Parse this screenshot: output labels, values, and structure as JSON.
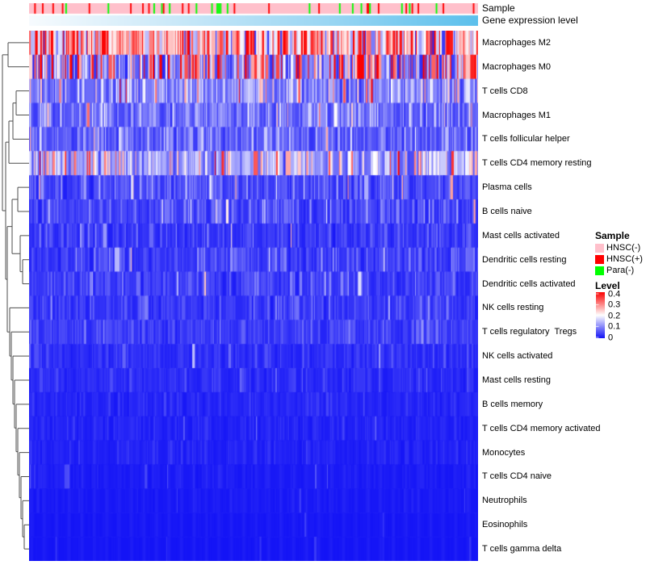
{
  "annotations": {
    "sample_label": "Sample",
    "gene_expression_label": "Gene expression level"
  },
  "legend": {
    "sample_title": "Sample",
    "sample_items": [
      {
        "label": "HNSC(-)",
        "color": "#FFC0CB"
      },
      {
        "label": "HNSC(+)",
        "color": "#FF0000"
      },
      {
        "label": "Para(-)",
        "color": "#00FF00"
      }
    ],
    "level_title": "Level",
    "level_ticks": [
      "0.4",
      "0.3",
      "0.2",
      "0.1",
      "0"
    ]
  },
  "chart_data": {
    "type": "heatmap",
    "value_range": [
      0,
      0.4
    ],
    "colormap": {
      "low_color": "#1212F6",
      "mid_color": "#FFFFFF",
      "high_color": "#FB0202",
      "min": 0,
      "mid_value": 0.2,
      "max": 0.4
    },
    "render": {
      "n_columns": 520,
      "seed": 7
    },
    "rows": [
      {
        "name": "Macrophages M2",
        "mean_level": 0.26,
        "spread": 0.4,
        "p_high": 0.02,
        "high_range": [
          0.34,
          0.42
        ],
        "p_low": 0.08
      },
      {
        "name": "Macrophages M0",
        "mean_level": 0.13,
        "spread": 1.05,
        "p_high": 0.1,
        "high_range": [
          0.3,
          0.42
        ],
        "p_low": 0.05
      },
      {
        "name": "T cells CD8",
        "mean_level": 0.1,
        "spread": 0.55,
        "p_high": 0.05,
        "high_range": [
          0.25,
          0.4
        ],
        "p_low": 0.02
      },
      {
        "name": "Macrophages M1",
        "mean_level": 0.075,
        "spread": 0.5,
        "p_high": 0.012,
        "high_range": [
          0.25,
          0.35
        ],
        "p_low": 0.01
      },
      {
        "name": "T cells follicular helper",
        "mean_level": 0.065,
        "spread": 0.5,
        "p_high": 0.01,
        "high_range": [
          0.22,
          0.32
        ],
        "p_low": 0.01
      },
      {
        "name": "T cells CD4 memory resting",
        "mean_level": 0.125,
        "spread": 0.5,
        "p_high": 0.035,
        "high_range": [
          0.25,
          0.4
        ],
        "p_low": 0.01
      },
      {
        "name": "Plasma cells",
        "mean_level": 0.05,
        "spread": 0.62,
        "p_high": 0.012,
        "high_range": [
          0.22,
          0.35
        ],
        "p_low": 0
      },
      {
        "name": "B cells naive",
        "mean_level": 0.042,
        "spread": 0.62,
        "p_high": 0.01,
        "high_range": [
          0.2,
          0.3
        ],
        "p_low": 0
      },
      {
        "name": "Mast cells activated",
        "mean_level": 0.032,
        "spread": 0.6,
        "p_high": 0.006,
        "high_range": [
          0.2,
          0.3
        ],
        "p_low": 0
      },
      {
        "name": "Dendritic cells resting",
        "mean_level": 0.035,
        "spread": 0.6,
        "p_high": 0.005,
        "high_range": [
          0.15,
          0.3
        ],
        "p_low": 0
      },
      {
        "name": "Dendritic cells activated",
        "mean_level": 0.033,
        "spread": 0.58,
        "p_high": 0.004,
        "high_range": [
          0.15,
          0.25
        ],
        "p_low": 0
      },
      {
        "name": "NK cells resting",
        "mean_level": 0.032,
        "spread": 0.55,
        "p_high": 0.003,
        "high_range": [
          0.12,
          0.2
        ],
        "p_low": 0
      },
      {
        "name": "T cells regulatory  Tregs",
        "mean_level": 0.035,
        "spread": 0.5,
        "p_high": 0.002,
        "high_range": [
          0.12,
          0.2
        ],
        "p_low": 0
      },
      {
        "name": "NK cells activated",
        "mean_level": 0.022,
        "spread": 0.5,
        "p_high": 0.002,
        "high_range": [
          0.1,
          0.18
        ],
        "p_low": 0
      },
      {
        "name": "Mast cells resting",
        "mean_level": 0.02,
        "spread": 0.5,
        "p_high": 0.002,
        "high_range": [
          0.08,
          0.15
        ],
        "p_low": 0
      },
      {
        "name": "B cells memory",
        "mean_level": 0.016,
        "spread": 0.5,
        "p_high": 0.002,
        "high_range": [
          0.08,
          0.12
        ],
        "p_low": 0
      },
      {
        "name": "T cells CD4 memory activated",
        "mean_level": 0.013,
        "spread": 0.5,
        "p_high": 0.003,
        "high_range": [
          0.05,
          0.1
        ],
        "p_low": 0
      },
      {
        "name": "Monocytes",
        "mean_level": 0.012,
        "spread": 0.5,
        "p_high": 0.003,
        "high_range": [
          0.05,
          0.09
        ],
        "p_low": 0
      },
      {
        "name": "T cells CD4 naive",
        "mean_level": 0.007,
        "spread": 0.45,
        "p_high": 0.02,
        "high_range": [
          0.03,
          0.07
        ],
        "p_low": 0
      },
      {
        "name": "Neutrophils",
        "mean_level": 0.006,
        "spread": 0.4,
        "p_high": 0.015,
        "high_range": [
          0.03,
          0.06
        ],
        "p_low": 0
      },
      {
        "name": "Eosinophils",
        "mean_level": 0.004,
        "spread": 0.35,
        "p_high": 0.01,
        "high_range": [
          0.025,
          0.05
        ],
        "p_low": 0
      },
      {
        "name": "T cells gamma delta",
        "mean_level": 0.003,
        "spread": 0.3,
        "p_high": 0.008,
        "high_range": [
          0.02,
          0.04
        ],
        "p_low": 0
      }
    ],
    "column_annotations": [
      {
        "name": "Sample",
        "type": "categorical",
        "categories": [
          "HNSC(-)",
          "HNSC(+)",
          "Para(-)"
        ],
        "colors": [
          "#FFC0CB",
          "#FF0000",
          "#00FF00"
        ],
        "fractions": [
          0.92,
          0.05,
          0.03
        ]
      },
      {
        "name": "Gene expression level",
        "type": "continuous",
        "gradient": [
          "#F7FBFE",
          "#C9E8F8",
          "#9AD6F3",
          "#5CC0EC"
        ]
      }
    ],
    "dendrogram": {
      "h": 33,
      "c": [
        {
          "h": 26,
          "c": [
            {
              "l": 0
            },
            {
              "l": 1
            }
          ]
        },
        {
          "h": 29,
          "c": [
            {
              "h": 25,
              "c": [
                {
                  "h": 20,
                  "c": [
                    {
                      "h": 16,
                      "c": [
                        {
                          "l": 2
                        },
                        {
                          "l": 3
                        }
                      ]
                    },
                    {
                      "l": 4
                    }
                  ]
                },
                {
                  "l": 5
                }
              ]
            },
            {
              "h": 27,
              "c": [
                {
                  "h": 21,
                  "c": [
                    {
                      "h": 14,
                      "c": [
                        {
                          "l": 6
                        },
                        {
                          "l": 7
                        }
                      ]
                    },
                    {
                      "h": 11,
                      "c": [
                        {
                          "l": 8
                        },
                        {
                          "h": 8,
                          "c": [
                            {
                              "l": 9
                            },
                            {
                              "l": 10
                            }
                          ]
                        }
                      ]
                    }
                  ]
                },
                {
                  "h": 24,
                  "c": [
                    {
                      "l": 11
                    },
                    {
                      "h": 22,
                      "c": [
                        {
                          "l": 12
                        },
                        {
                          "h": 20,
                          "c": [
                            {
                              "l": 13
                            },
                            {
                              "h": 18,
                              "c": [
                                {
                                  "l": 14
                                },
                                {
                                  "h": 16,
                                  "c": [
                                    {
                                      "l": 15
                                    },
                                    {
                                      "h": 14,
                                      "c": [
                                        {
                                          "l": 16
                                        },
                                        {
                                          "h": 12,
                                          "c": [
                                            {
                                              "l": 17
                                            },
                                            {
                                              "h": 10,
                                              "c": [
                                                {
                                                  "l": 18
                                                },
                                                {
                                                  "h": 8,
                                                  "c": [
                                                    {
                                                      "l": 19
                                                    },
                                                    {
                                                      "h": 6,
                                                      "c": [
                                                        {
                                                          "l": 20
                                                        },
                                                        {
                                                          "l": 21
                                                        }
                                                      ]
                                                    }
                                                  ]
                                                }
                                              ]
                                            }
                                          ]
                                        }
                                      ]
                                    }
                                  ]
                                }
                              ]
                            }
                          ]
                        }
                      ]
                    }
                  ]
                }
              ]
            }
          ]
        }
      ]
    }
  }
}
